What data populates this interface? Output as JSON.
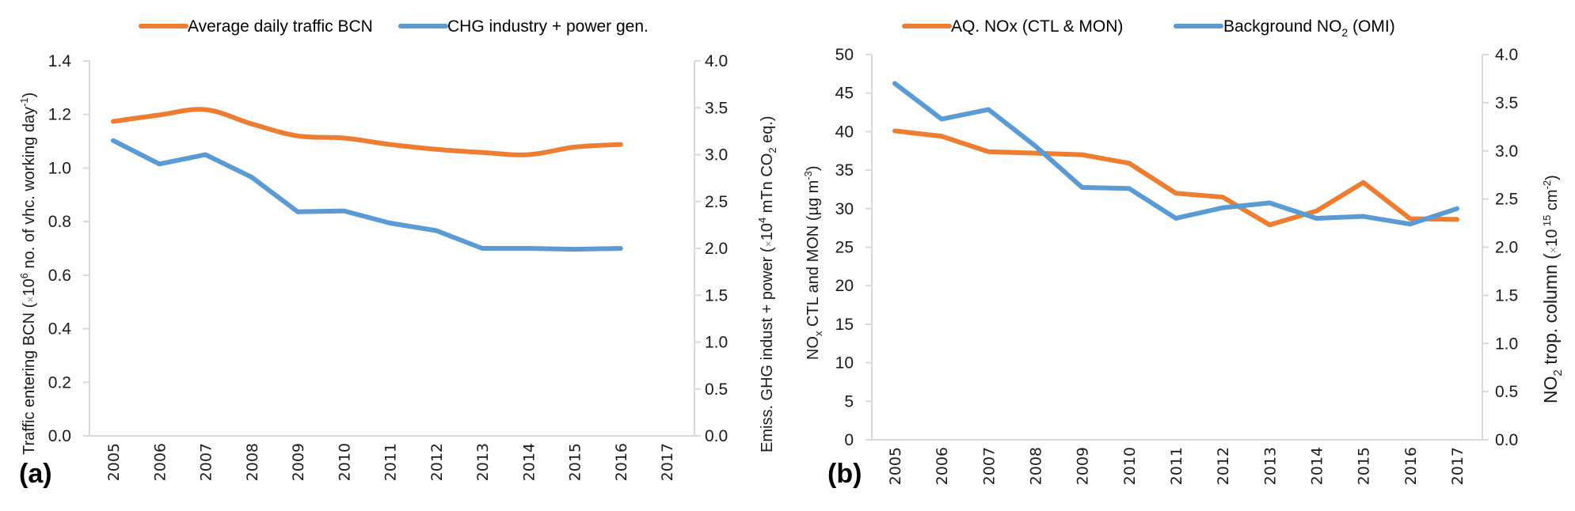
{
  "chart_data": [
    {
      "panel_label": "(a)",
      "type": "line",
      "title": "",
      "categories": [
        "2005",
        "2006",
        "2007",
        "2008",
        "2009",
        "2010",
        "2011",
        "2012",
        "2013",
        "2014",
        "2015",
        "2016",
        "2017"
      ],
      "xlabel": "",
      "ylabel": "Traffic entering BCN (×10⁶ no. of vhc. working day⁻¹)",
      "ylabel_parts": {
        "main": "Traffic entering BCN (",
        "times": "×",
        "ten": "10",
        "exp": "6",
        "rest": " no. of vhc. working day",
        "exp2": "-1",
        "close": ")"
      },
      "ylim": [
        0,
        1.4
      ],
      "yticks": [
        "0.0",
        "0.2",
        "0.4",
        "0.6",
        "0.8",
        "1.0",
        "1.2",
        "1.4"
      ],
      "y2label": "Emiss. GHG indust + power (×10⁴ mTn CO₂ eq.)",
      "y2label_parts": {
        "main": "Emiss. GHG indust + power (",
        "times": "×",
        "ten": "10",
        "exp": "4",
        "rest": " mTn CO",
        "sub": "2",
        "close": " eq.)"
      },
      "y2lim": [
        0,
        4.0
      ],
      "y2ticks": [
        "0.0",
        "0.5",
        "1.0",
        "1.5",
        "2.0",
        "2.5",
        "3.0",
        "3.5",
        "4.0"
      ],
      "grid": false,
      "legend_position": "top",
      "series": [
        {
          "name": "Average daily traffic BCN",
          "axis": "left",
          "color": "#ED7D31",
          "smooth": true,
          "values": [
            1.174,
            1.198,
            1.218,
            1.165,
            1.12,
            1.112,
            1.088,
            1.07,
            1.058,
            1.05,
            1.078,
            1.088,
            null
          ]
        },
        {
          "name": "CHG industry + power gen.",
          "axis": "right",
          "color": "#5B9BD5",
          "smooth": false,
          "values": [
            3.15,
            2.9,
            3.0,
            2.76,
            2.39,
            2.4,
            2.27,
            2.19,
            2.0,
            2.0,
            1.99,
            2.0,
            null
          ]
        }
      ]
    },
    {
      "panel_label": "(b)",
      "type": "line",
      "title": "",
      "categories": [
        "2005",
        "2006",
        "2007",
        "2008",
        "2009",
        "2010",
        "2011",
        "2012",
        "2013",
        "2014",
        "2015",
        "2016",
        "2017"
      ],
      "xlabel": "",
      "ylabel": "NOx CTL and MON (µg m⁻³)",
      "ylabel_parts": {
        "main": "NO",
        "sub": "x",
        "rest": " CTL and MON (µg m",
        "exp": "-3",
        "close": ")"
      },
      "ylim": [
        0,
        50
      ],
      "yticks": [
        "0",
        "5",
        "10",
        "15",
        "20",
        "25",
        "30",
        "35",
        "40",
        "45",
        "50"
      ],
      "y2label": "NO₂ trop. column (×10¹⁵ cm⁻²)",
      "y2label_parts": {
        "main": "NO",
        "sub": "2",
        "rest": " trop. column (",
        "times": "×",
        "ten": "10",
        "exp": " 15",
        "rest2": " cm",
        "exp2": "-2",
        "close": ")"
      },
      "y2lim": [
        0,
        4.0
      ],
      "y2ticks": [
        "0.0",
        "0.5",
        "1.0",
        "1.5",
        "2.0",
        "2.5",
        "3.0",
        "3.5",
        "4.0"
      ],
      "grid": false,
      "legend_position": "top",
      "series": [
        {
          "name": "AQ. NOx (CTL & MON)",
          "axis": "left",
          "color": "#ED7D31",
          "smooth": false,
          "values": [
            40.1,
            39.4,
            37.4,
            37.2,
            37.0,
            35.9,
            32.0,
            31.5,
            27.9,
            29.7,
            33.4,
            28.7,
            28.6
          ]
        },
        {
          "name": "Background NO₂ (OMI)",
          "name_parts": {
            "main": "Background NO",
            "sub": "2",
            "rest": " (OMI)"
          },
          "axis": "right",
          "color": "#5B9BD5",
          "smooth": false,
          "values": [
            3.7,
            3.33,
            3.43,
            3.05,
            2.62,
            2.61,
            2.3,
            2.41,
            2.46,
            2.3,
            2.32,
            2.24,
            2.4
          ]
        }
      ]
    }
  ]
}
